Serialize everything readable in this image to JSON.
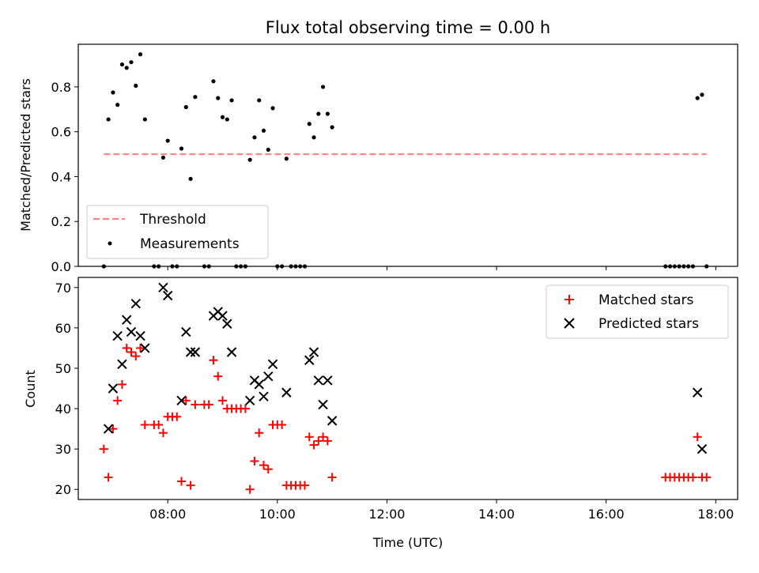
{
  "colors": {
    "threshold": "#ff7f7f",
    "measurements": "#000000",
    "matched": "#ff0000",
    "predicted": "#000000"
  },
  "chart_data": [
    {
      "type": "scatter",
      "title": "Flux total observing time = 0.00 h",
      "xlabel": "",
      "ylabel": "Matched/Predicted stars",
      "xlim": [
        "06:22",
        "18:24"
      ],
      "ylim": [
        0.0,
        0.99
      ],
      "yticks": [
        "0.0",
        "0.2",
        "0.4",
        "0.6",
        "0.8"
      ],
      "legend_position": "lower-left",
      "threshold": {
        "name": "Threshold",
        "y": 0.5,
        "x_range": [
          "06:50",
          "17:50"
        ],
        "style": "dashed"
      },
      "series": [
        {
          "name": "Measurements",
          "points": [
            [
              "06:50",
              0.0
            ],
            [
              "06:55",
              0.655
            ],
            [
              "07:00",
              0.775
            ],
            [
              "07:05",
              0.72
            ],
            [
              "07:10",
              0.9
            ],
            [
              "07:15",
              0.885
            ],
            [
              "07:20",
              0.91
            ],
            [
              "07:25",
              0.805
            ],
            [
              "07:30",
              0.945
            ],
            [
              "07:35",
              0.655
            ],
            [
              "07:45",
              0.0
            ],
            [
              "07:50",
              0.0
            ],
            [
              "07:55",
              0.485
            ],
            [
              "08:00",
              0.56
            ],
            [
              "08:05",
              0.0
            ],
            [
              "08:10",
              0.0
            ],
            [
              "08:15",
              0.525
            ],
            [
              "08:20",
              0.71
            ],
            [
              "08:25",
              0.39
            ],
            [
              "08:30",
              0.755
            ],
            [
              "08:40",
              0.0
            ],
            [
              "08:45",
              0.0
            ],
            [
              "08:50",
              0.825
            ],
            [
              "08:55",
              0.75
            ],
            [
              "09:00",
              0.665
            ],
            [
              "09:05",
              0.655
            ],
            [
              "09:10",
              0.74
            ],
            [
              "09:15",
              0.0
            ],
            [
              "09:20",
              0.0
            ],
            [
              "09:25",
              0.0
            ],
            [
              "09:30",
              0.475
            ],
            [
              "09:35",
              0.575
            ],
            [
              "09:40",
              0.74
            ],
            [
              "09:45",
              0.605
            ],
            [
              "09:50",
              0.52
            ],
            [
              "09:55",
              0.705
            ],
            [
              "10:00",
              0.0
            ],
            [
              "10:05",
              0.0
            ],
            [
              "10:10",
              0.48
            ],
            [
              "10:15",
              0.0
            ],
            [
              "10:20",
              0.0
            ],
            [
              "10:25",
              0.0
            ],
            [
              "10:30",
              0.0
            ],
            [
              "10:35",
              0.635
            ],
            [
              "10:40",
              0.575
            ],
            [
              "10:45",
              0.68
            ],
            [
              "10:50",
              0.8
            ],
            [
              "10:55",
              0.68
            ],
            [
              "11:00",
              0.62
            ],
            [
              "17:05",
              0.0
            ],
            [
              "17:10",
              0.0
            ],
            [
              "17:15",
              0.0
            ],
            [
              "17:20",
              0.0
            ],
            [
              "17:25",
              0.0
            ],
            [
              "17:30",
              0.0
            ],
            [
              "17:35",
              0.0
            ],
            [
              "17:40",
              0.75
            ],
            [
              "17:45",
              0.765
            ],
            [
              "17:50",
              0.0
            ]
          ]
        }
      ]
    },
    {
      "type": "scatter",
      "title": "",
      "xlabel": "Time (UTC)",
      "ylabel": "Count",
      "xlim": [
        "06:22",
        "18:24"
      ],
      "ylim": [
        17.5,
        72.5
      ],
      "yticks": [
        "20",
        "30",
        "40",
        "50",
        "60",
        "70"
      ],
      "xticks": [
        "08:00",
        "10:00",
        "12:00",
        "14:00",
        "16:00",
        "18:00"
      ],
      "legend_position": "upper-right",
      "series": [
        {
          "name": "Matched stars",
          "marker": "plus",
          "points": [
            [
              "06:50",
              30
            ],
            [
              "06:55",
              23
            ],
            [
              "07:00",
              35
            ],
            [
              "07:05",
              42
            ],
            [
              "07:10",
              46
            ],
            [
              "07:15",
              55
            ],
            [
              "07:20",
              54
            ],
            [
              "07:25",
              53
            ],
            [
              "07:30",
              55
            ],
            [
              "07:35",
              36
            ],
            [
              "07:45",
              36
            ],
            [
              "07:50",
              36
            ],
            [
              "07:55",
              34
            ],
            [
              "08:00",
              38
            ],
            [
              "08:05",
              38
            ],
            [
              "08:10",
              38
            ],
            [
              "08:15",
              22
            ],
            [
              "08:20",
              42
            ],
            [
              "08:25",
              21
            ],
            [
              "08:30",
              41
            ],
            [
              "08:40",
              41
            ],
            [
              "08:45",
              41
            ],
            [
              "08:50",
              52
            ],
            [
              "08:55",
              48
            ],
            [
              "09:00",
              42
            ],
            [
              "09:05",
              40
            ],
            [
              "09:10",
              40
            ],
            [
              "09:15",
              40
            ],
            [
              "09:20",
              40
            ],
            [
              "09:25",
              40
            ],
            [
              "09:30",
              20
            ],
            [
              "09:35",
              27
            ],
            [
              "09:40",
              34
            ],
            [
              "09:45",
              26
            ],
            [
              "09:50",
              25
            ],
            [
              "09:55",
              36
            ],
            [
              "10:00",
              36
            ],
            [
              "10:05",
              36
            ],
            [
              "10:10",
              21
            ],
            [
              "10:15",
              21
            ],
            [
              "10:20",
              21
            ],
            [
              "10:25",
              21
            ],
            [
              "10:30",
              21
            ],
            [
              "10:35",
              33
            ],
            [
              "10:40",
              31
            ],
            [
              "10:45",
              32
            ],
            [
              "10:50",
              33
            ],
            [
              "10:55",
              32
            ],
            [
              "11:00",
              23
            ],
            [
              "17:05",
              23
            ],
            [
              "17:10",
              23
            ],
            [
              "17:15",
              23
            ],
            [
              "17:20",
              23
            ],
            [
              "17:25",
              23
            ],
            [
              "17:30",
              23
            ],
            [
              "17:35",
              23
            ],
            [
              "17:40",
              33
            ],
            [
              "17:45",
              23
            ],
            [
              "17:50",
              23
            ]
          ]
        },
        {
          "name": "Predicted stars",
          "marker": "x",
          "points": [
            [
              "06:55",
              35
            ],
            [
              "07:00",
              45
            ],
            [
              "07:05",
              58
            ],
            [
              "07:10",
              51
            ],
            [
              "07:15",
              62
            ],
            [
              "07:20",
              59
            ],
            [
              "07:25",
              66
            ],
            [
              "07:30",
              58
            ],
            [
              "07:35",
              55
            ],
            [
              "07:55",
              70
            ],
            [
              "08:00",
              68
            ],
            [
              "08:15",
              42
            ],
            [
              "08:20",
              59
            ],
            [
              "08:25",
              54
            ],
            [
              "08:30",
              54
            ],
            [
              "08:50",
              63
            ],
            [
              "08:55",
              64
            ],
            [
              "09:00",
              63
            ],
            [
              "09:05",
              61
            ],
            [
              "09:10",
              54
            ],
            [
              "09:30",
              42
            ],
            [
              "09:35",
              47
            ],
            [
              "09:40",
              46
            ],
            [
              "09:45",
              43
            ],
            [
              "09:50",
              48
            ],
            [
              "09:55",
              51
            ],
            [
              "10:10",
              44
            ],
            [
              "10:35",
              52
            ],
            [
              "10:40",
              54
            ],
            [
              "10:45",
              47
            ],
            [
              "10:50",
              41
            ],
            [
              "10:55",
              47
            ],
            [
              "11:00",
              37
            ],
            [
              "17:40",
              44
            ],
            [
              "17:45",
              30
            ]
          ]
        }
      ]
    }
  ]
}
